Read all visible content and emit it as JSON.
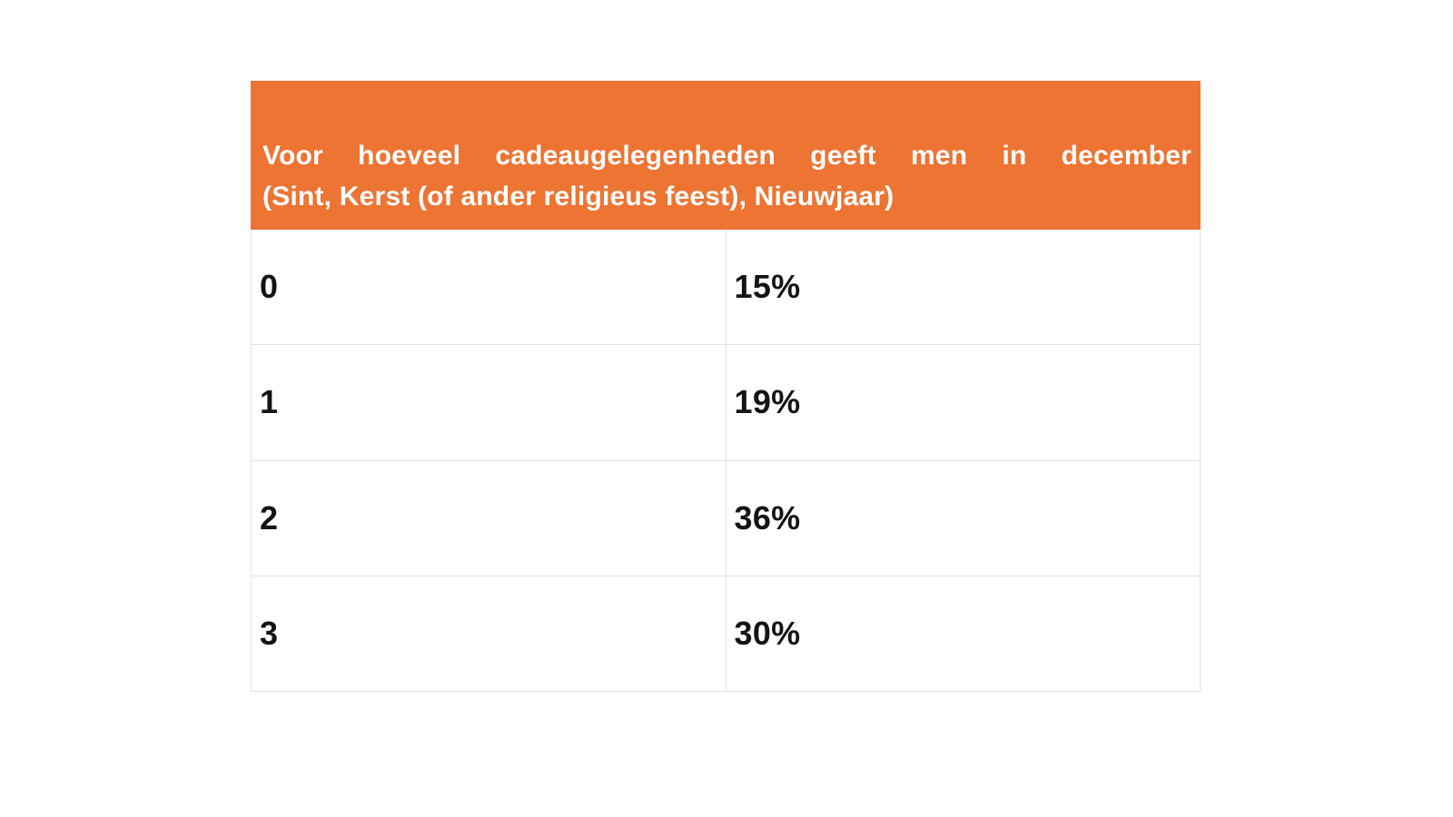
{
  "theme": {
    "accent": "#ED7433",
    "header_text": "#FFFFFF",
    "cell_text": "#141414",
    "border": "#E2E2E2",
    "background": "#FFFFFF"
  },
  "table": {
    "header": {
      "line1": "Voor hoeveel cadeaugelegenheden geeft men in december",
      "line2": "(Sint, Kerst (of ander religieus feest), Nieuwjaar)"
    },
    "rows": [
      {
        "label": "0",
        "value": "15%"
      },
      {
        "label": "1",
        "value": "19%"
      },
      {
        "label": "2",
        "value": "36%"
      },
      {
        "label": "3",
        "value": "30%"
      }
    ]
  },
  "chart_data": {
    "type": "table",
    "title": "Voor hoeveel cadeaugelegenheden geeft men in december (Sint, Kerst (of ander religieus feest), Nieuwjaar)",
    "categories": [
      "0",
      "1",
      "2",
      "3"
    ],
    "values": [
      15,
      19,
      36,
      30
    ],
    "value_unit": "%",
    "layout": {
      "columns": 2,
      "header_background": "#ED7433",
      "grid": "light-gray 1px lines, equal 50/50 columns"
    }
  }
}
